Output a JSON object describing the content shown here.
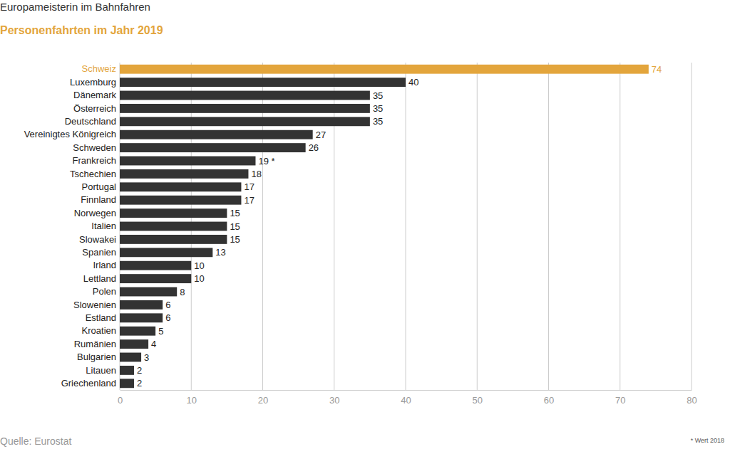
{
  "chart_data": {
    "type": "bar",
    "orientation": "horizontal",
    "title": "Europameisterin im Bahnfahren",
    "subtitle": "Personenfahrten im Jahr 2019",
    "source": "Quelle: Eurostat",
    "note": "* Wert 2018",
    "categories": [
      "Schweiz",
      "Luxemburg",
      "Dänemark",
      "Österreich",
      "Deutschland",
      "Vereinigtes Königreich",
      "Schweden",
      "Frankreich",
      "Tschechien",
      "Portugal",
      "Finnland",
      "Norwegen",
      "Italien",
      "Slowakei",
      "Spanien",
      "Irland",
      "Lettland",
      "Polen",
      "Slowenien",
      "Estland",
      "Kroatien",
      "Rumänien",
      "Bulgarien",
      "Litauen",
      "Griechenland"
    ],
    "values": [
      74,
      40,
      35,
      35,
      35,
      27,
      26,
      19,
      18,
      17,
      17,
      15,
      15,
      15,
      13,
      10,
      10,
      8,
      6,
      6,
      5,
      4,
      3,
      2,
      2
    ],
    "value_labels": [
      "74",
      "40",
      "35",
      "35",
      "35",
      "27",
      "26",
      "19 *",
      "18",
      "17",
      "17",
      "15",
      "15",
      "15",
      "13",
      "10",
      "10",
      "8",
      "6",
      "6",
      "5",
      "4",
      "3",
      "2",
      "2"
    ],
    "colors": [
      "#e3a53c",
      "#333333",
      "#333333",
      "#333333",
      "#333333",
      "#333333",
      "#333333",
      "#333333",
      "#333333",
      "#333333",
      "#333333",
      "#333333",
      "#333333",
      "#333333",
      "#333333",
      "#333333",
      "#333333",
      "#333333",
      "#333333",
      "#333333",
      "#333333",
      "#333333",
      "#333333",
      "#333333",
      "#333333"
    ],
    "xlim": [
      0,
      80
    ],
    "xticks": [
      0,
      10,
      20,
      30,
      40,
      50,
      60,
      70,
      80
    ],
    "grid": true,
    "data_labels": true
  }
}
